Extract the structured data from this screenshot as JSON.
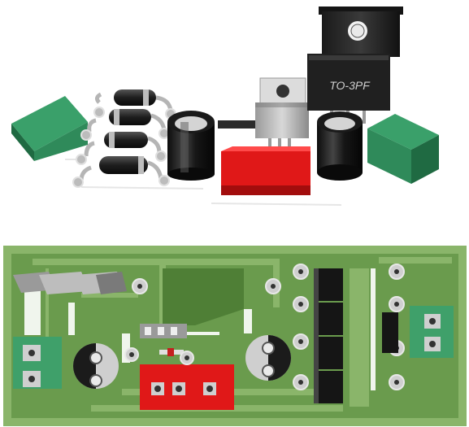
{
  "colors": {
    "background": "#ffffff",
    "terminal_green_front": "#2f8a5a",
    "terminal_green_top": "#3aa06a",
    "terminal_green_side": "#1f6a42",
    "diode_body": "#2b2b2b",
    "diode_band": "#cfcfcf",
    "capacitor_body": "#1b1b1b",
    "capacitor_top": "#d9d9d9",
    "heatsink_body": "#2a2a2a",
    "regulator_body": "#bdbdbd",
    "relay_red": "#e01818",
    "pcb_board": "#6a9b4d",
    "pcb_track": "#8ab56a",
    "pcb_outline": "#4a7a35",
    "pad": "#cfcfcf",
    "pad_hole": "#3a3a3a",
    "silk": "#ffffff"
  },
  "regulator_label": "TO-3PF",
  "components": {
    "top_view": [
      {
        "name": "left-terminal-block",
        "kind": "terminal"
      },
      {
        "name": "bridge-diode-1",
        "kind": "diode"
      },
      {
        "name": "bridge-diode-2",
        "kind": "diode"
      },
      {
        "name": "bridge-diode-3",
        "kind": "diode"
      },
      {
        "name": "bridge-diode-4",
        "kind": "diode"
      },
      {
        "name": "capacitor-left",
        "kind": "capacitor"
      },
      {
        "name": "voltage-regulator",
        "kind": "regulator"
      },
      {
        "name": "power-transistor-to3pf",
        "kind": "transistor"
      },
      {
        "name": "relay-red",
        "kind": "relay"
      },
      {
        "name": "capacitor-right",
        "kind": "capacitor"
      },
      {
        "name": "right-terminal-block",
        "kind": "terminal"
      }
    ]
  }
}
